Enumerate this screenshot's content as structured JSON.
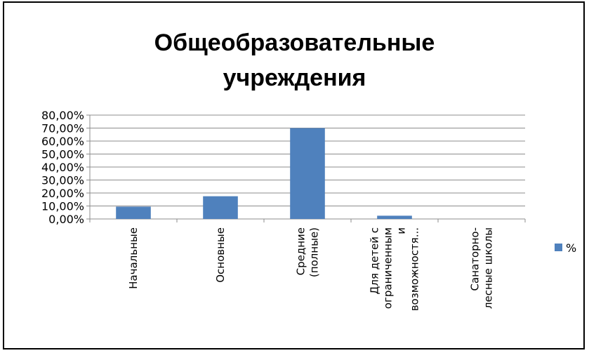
{
  "chart_data": {
    "type": "bar",
    "title_lines": [
      "Общеобразовательные",
      "учреждения"
    ],
    "categories": [
      [
        "Начальные"
      ],
      [
        "Основные"
      ],
      [
        "Средние",
        "(полные)"
      ],
      [
        "Для детей с",
        "ограниченным",
        "и",
        "возможностя..."
      ],
      [
        "Санаторно-",
        "лесные школы"
      ]
    ],
    "series": [
      {
        "name": "%",
        "values": [
          9.5,
          17.5,
          70.0,
          2.5,
          0.0
        ]
      }
    ],
    "yticks": [
      "0,00%",
      "10,00%",
      "20,00%",
      "30,00%",
      "40,00%",
      "50,00%",
      "60,00%",
      "70,00%",
      "80,00%"
    ],
    "ylim": [
      0,
      80
    ],
    "grid": true,
    "legend_position": "right",
    "bar_color": "#4f81bd"
  }
}
